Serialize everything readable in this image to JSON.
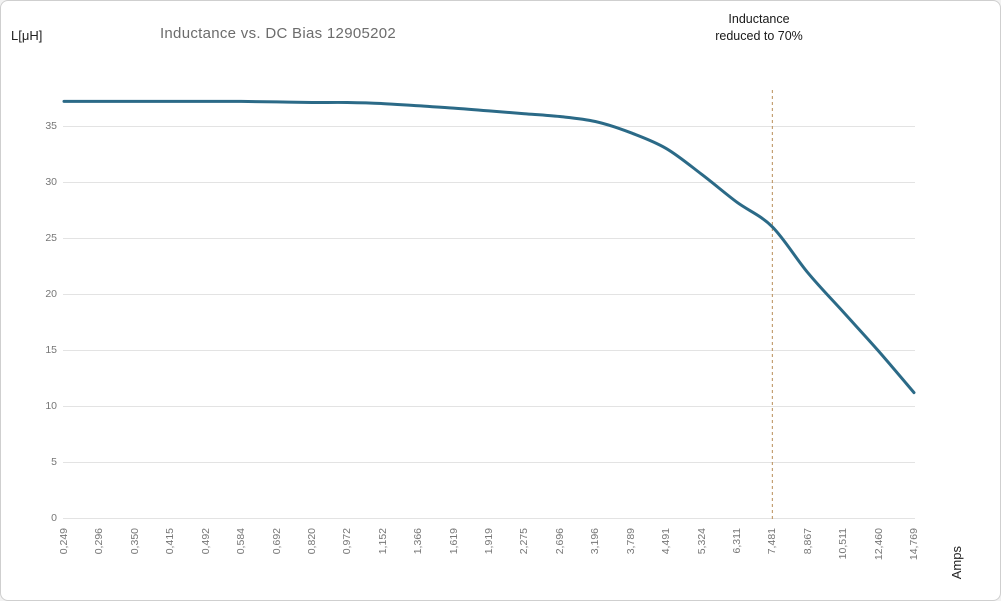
{
  "chart_data": {
    "type": "line",
    "title": "Inductance vs. DC Bias 12905202",
    "xlabel": "Amps",
    "ylabel": "L[μH]",
    "categories": [
      "0,249",
      "0,296",
      "0,350",
      "0,415",
      "0,492",
      "0,584",
      "0,692",
      "0,820",
      "0,972",
      "1,152",
      "1,366",
      "1,619",
      "1,919",
      "2,275",
      "2,696",
      "3,196",
      "3,789",
      "4,491",
      "5,324",
      "6,311",
      "7,481",
      "8,867",
      "10,511",
      "12,460",
      "14,769"
    ],
    "series": [
      {
        "name": "Inductance",
        "values": [
          37.2,
          37.2,
          37.2,
          37.2,
          37.2,
          37.2,
          37.15,
          37.1,
          37.1,
          37.0,
          36.8,
          36.6,
          36.35,
          36.1,
          35.85,
          35.4,
          34.4,
          33.0,
          30.7,
          28.2,
          26.0,
          21.9,
          18.4,
          14.9,
          11.2
        ]
      }
    ],
    "yticks": [
      0,
      5,
      10,
      15,
      20,
      25,
      30,
      35
    ],
    "ylim": [
      0,
      38.2
    ],
    "grid": "horizontal",
    "legend": "none",
    "annotation": {
      "text_line1": "Inductance",
      "text_line2": "reduced to 70%",
      "at_category": "7,481",
      "line_style": "dashed"
    }
  },
  "colors": {
    "line": "#2b6a87",
    "annotation_line": "#b98e58",
    "grid": "#e3e3e3",
    "title_text": "#6c6c6c",
    "tick_text": "#767676",
    "label_text": "#222222",
    "background": "#ffffff",
    "border": "#cfcfcf"
  }
}
